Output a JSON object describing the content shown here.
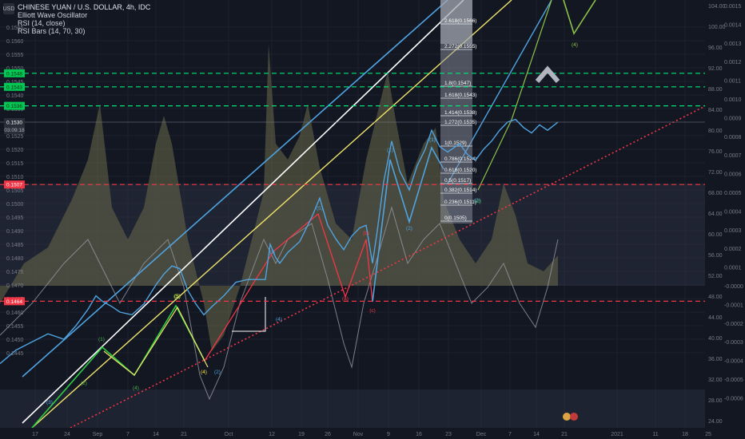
{
  "header": {
    "currency_badge": "USD",
    "symbol_line": "CHINESE YUAN / U.S. DOLLAR, 4h, IDC",
    "indicators": [
      "Elliott Wave Oscillator",
      "RSI (14, close)",
      "RSI Bars (14, 70, 30)"
    ]
  },
  "price_axis": {
    "ticks": [
      "0.1565",
      "0.1560",
      "0.1555",
      "0.1550",
      "0.1545",
      "0.1540",
      "0.1535",
      "0.1530",
      "0.1525",
      "0.1520",
      "0.1515",
      "0.1510",
      "0.1505",
      "0.1500",
      "0.1495",
      "0.1490",
      "0.1485",
      "0.1480",
      "0.1475",
      "0.1470",
      "0.1465",
      "0.1460",
      "0.1455",
      "0.1450",
      "0.1445"
    ],
    "current_price": "0.1530",
    "countdown": "03:09:18",
    "tag_red_top": "0.1507",
    "tag_red_bottom": "0.1464",
    "tags_green": [
      "0.1548",
      "0.1543",
      "0.1536"
    ]
  },
  "rsi_axis": {
    "ticks": [
      "104.00",
      "100.00",
      "96.00",
      "92.00",
      "88.00",
      "84.00",
      "80.00",
      "76.00",
      "72.00",
      "68.00",
      "64.00",
      "60.00",
      "56.00",
      "52.00",
      "48.00",
      "44.00",
      "40.00",
      "36.00",
      "32.00",
      "28.00",
      "24.00"
    ]
  },
  "ewo_axis": {
    "ticks": [
      "0.0015",
      "0.0014",
      "0.0013",
      "0.0012",
      "0.0011",
      "0.0010",
      "0.0009",
      "0.0008",
      "0.0007",
      "0.0006",
      "0.0005",
      "0.0004",
      "0.0003",
      "0.0002",
      "0.0001",
      "-0.0000",
      "-0.0001",
      "-0.0002",
      "-0.0003",
      "-0.0004",
      "-0.0005",
      "-0.0006"
    ]
  },
  "time_axis": {
    "labels": [
      "17",
      "24",
      "Sep",
      "7",
      "14",
      "21",
      "Oct",
      "12",
      "19",
      "26",
      "Nov",
      "9",
      "16",
      "23",
      "Dec",
      "7",
      "14",
      "21",
      "2021",
      "11",
      "18",
      "25"
    ]
  },
  "chart_data": {
    "type": "line",
    "title": "CHINESE YUAN / U.S. DOLLAR, 4h, IDC",
    "ylim": [
      0.1443,
      0.157
    ],
    "price_series": [
      [
        0,
        0.1441
      ],
      [
        20,
        0.1446
      ],
      [
        40,
        0.1449
      ],
      [
        60,
        0.1452
      ],
      [
        80,
        0.145
      ],
      [
        95,
        0.1455
      ],
      [
        110,
        0.1461
      ],
      [
        120,
        0.1466
      ],
      [
        128,
        0.1464
      ],
      [
        140,
        0.1462
      ],
      [
        150,
        0.146
      ],
      [
        165,
        0.1459
      ],
      [
        180,
        0.1463
      ],
      [
        195,
        0.147
      ],
      [
        205,
        0.1474
      ],
      [
        215,
        0.1477
      ],
      [
        225,
        0.1476
      ],
      [
        235,
        0.1468
      ],
      [
        245,
        0.1463
      ],
      [
        255,
        0.1459
      ],
      [
        265,
        0.1462
      ],
      [
        280,
        0.1466
      ],
      [
        295,
        0.1471
      ],
      [
        310,
        0.1472
      ],
      [
        332,
        0.1472
      ],
      [
        338,
        0.1485
      ],
      [
        345,
        0.148
      ],
      [
        350,
        0.1478
      ],
      [
        360,
        0.1482
      ],
      [
        375,
        0.1486
      ],
      [
        390,
        0.1495
      ],
      [
        400,
        0.1502
      ],
      [
        410,
        0.1492
      ],
      [
        420,
        0.1487
      ],
      [
        430,
        0.1483
      ],
      [
        440,
        0.1488
      ],
      [
        450,
        0.1491
      ],
      [
        458,
        0.1492
      ],
      [
        466,
        0.1478
      ],
      [
        472,
        0.149
      ],
      [
        480,
        0.1508
      ],
      [
        490,
        0.1523
      ],
      [
        500,
        0.1512
      ],
      [
        512,
        0.1505
      ],
      [
        522,
        0.1514
      ],
      [
        532,
        0.152
      ],
      [
        540,
        0.1527
      ],
      [
        550,
        0.1521
      ],
      [
        560,
        0.1519
      ],
      [
        575,
        0.1522
      ],
      [
        585,
        0.1518
      ],
      [
        595,
        0.1516
      ],
      [
        605,
        0.152
      ],
      [
        615,
        0.1523
      ],
      [
        625,
        0.1527
      ],
      [
        635,
        0.153
      ],
      [
        645,
        0.1531
      ],
      [
        655,
        0.1528
      ],
      [
        665,
        0.1526
      ],
      [
        675,
        0.1529
      ],
      [
        685,
        0.1527
      ],
      [
        698,
        0.153
      ]
    ],
    "price_labels_color": "#4fa3e0",
    "waves": [
      {
        "label": "(1)",
        "color": "#4fa3e0"
      },
      {
        "label": "(2)",
        "color": "#4fa3e0"
      },
      {
        "label": "(3)",
        "color": "#4fa3e0"
      },
      {
        "label": "(4)",
        "color": "#4fa3e0"
      },
      {
        "label": "(5)",
        "color": "#4fa3e0"
      },
      {
        "label": "(1)",
        "color": "#4fa3e0"
      },
      {
        "label": "(2)",
        "color": "#4fa3e0"
      },
      {
        "label": "(1)",
        "color": "#4caf50"
      },
      {
        "label": "(2)",
        "color": "#4caf50"
      },
      {
        "label": "(3)",
        "color": "#4caf50"
      },
      {
        "label": "(4)",
        "color": "#4caf50"
      },
      {
        "label": "(5)",
        "color": "#ffeb3b"
      },
      {
        "label": "(4)",
        "color": "#ffeb3b"
      },
      {
        "label": "(a)",
        "color": "#f23645"
      },
      {
        "label": "(b)",
        "color": "#f23645"
      },
      {
        "label": "(c)",
        "color": "#f23645"
      },
      {
        "label": "(4)",
        "color": "#8bc34a"
      },
      {
        "label": "(1)",
        "color": "#4fa3e0"
      },
      {
        "label": "(2)",
        "color": "#4caf50"
      }
    ],
    "fib_levels": [
      {
        "ratio": "2.618",
        "price": "0.1566"
      },
      {
        "ratio": "2.272",
        "price": "0.1555"
      },
      {
        "ratio": "1.8",
        "price": "0.1547"
      },
      {
        "ratio": "1.618",
        "price": "0.1543"
      },
      {
        "ratio": "1.414",
        "price": "0.1538"
      },
      {
        "ratio": "1.272",
        "price": "0.1535"
      },
      {
        "ratio": "1",
        "price": "0.1529"
      },
      {
        "ratio": "0.786",
        "price": "0.1524"
      },
      {
        "ratio": "0.618",
        "price": "0.1520"
      },
      {
        "ratio": "0.5",
        "price": "0.1517"
      },
      {
        "ratio": "0.382",
        "price": "0.1514"
      },
      {
        "ratio": "0.236",
        "price": "0.1511"
      },
      {
        "ratio": "0",
        "price": "0.1505"
      }
    ],
    "horizontal_levels": [
      {
        "price": 0.1548,
        "color": "#00e676"
      },
      {
        "price": 0.1543,
        "color": "#00e676"
      },
      {
        "price": 0.1536,
        "color": "#00e676"
      },
      {
        "price": 0.1507,
        "color": "#f23645"
      },
      {
        "price": 0.1464,
        "color": "#f23645"
      }
    ],
    "rsi_zone": {
      "upper": 70,
      "lower": 50
    },
    "colors": {
      "background": "#131722",
      "price": "#4fa3e0",
      "support": "#f23645",
      "target": "#00e676"
    }
  }
}
